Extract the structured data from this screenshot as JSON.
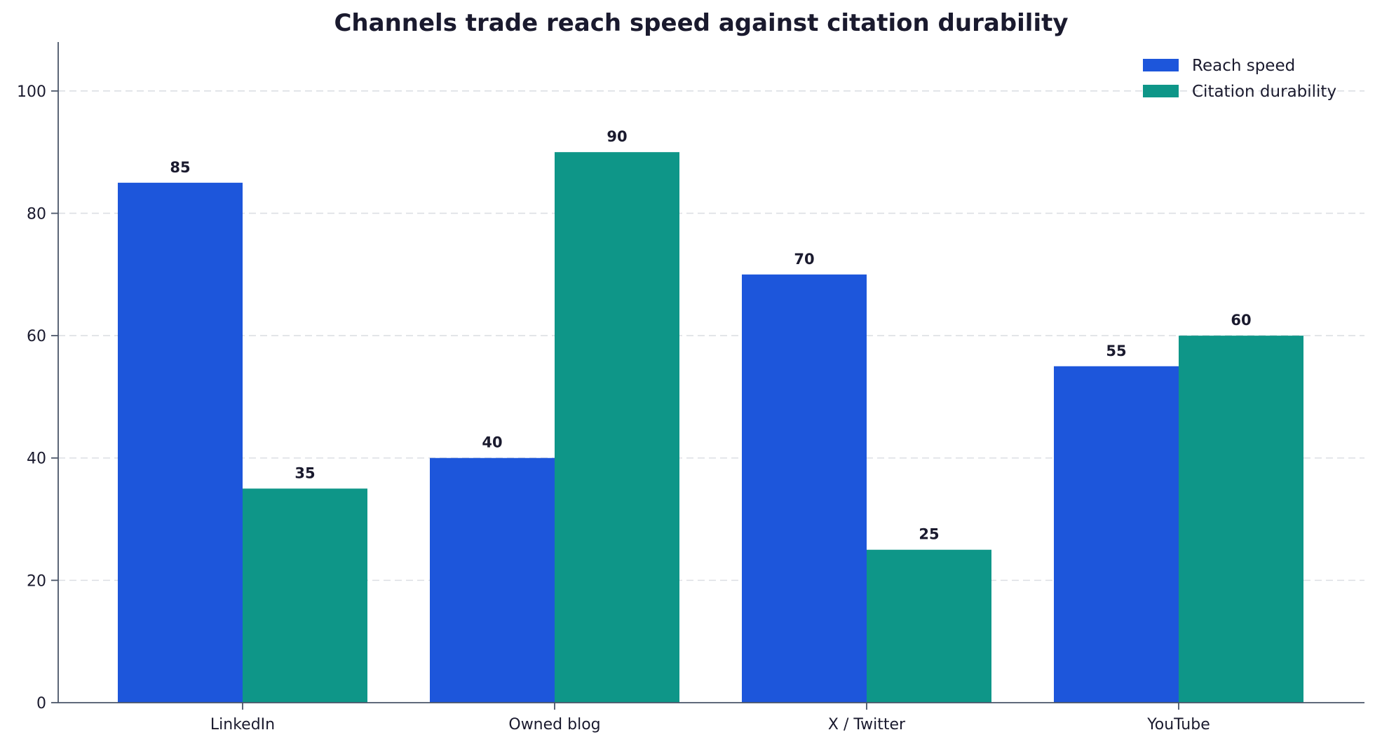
{
  "chart_data": {
    "type": "bar",
    "title": "Channels trade reach speed against citation durability",
    "xlabel": "",
    "ylabel": "",
    "categories": [
      "LinkedIn",
      "Owned blog",
      "X / Twitter",
      "YouTube"
    ],
    "series": [
      {
        "name": "Reach speed",
        "values": [
          85,
          40,
          70,
          55
        ],
        "color": "#1d56db"
      },
      {
        "name": "Citation durability",
        "values": [
          35,
          90,
          25,
          60
        ],
        "color": "#0e9688"
      }
    ],
    "ylim": [
      0,
      108
    ],
    "yticks": [
      0,
      20,
      40,
      60,
      80,
      100
    ],
    "grid": "horizontal-dashed",
    "legend_position": "top-right",
    "data_labels": true
  }
}
